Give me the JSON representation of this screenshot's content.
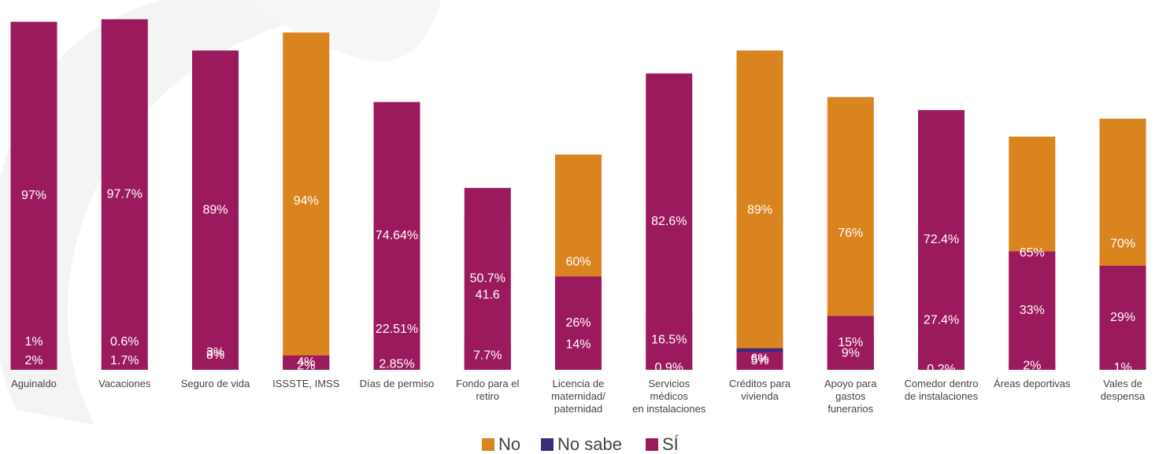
{
  "chart_data": {
    "type": "bar",
    "stacked": true,
    "normalized": true,
    "categories": [
      [
        "Aguinaldo"
      ],
      [
        "Vacaciones"
      ],
      [
        "Seguro de vida"
      ],
      [
        "ISSSTE, IMSS"
      ],
      [
        "Días de permiso"
      ],
      [
        "Fondo para el",
        "retiro"
      ],
      [
        "Licencia de",
        "maternidad/",
        "paternidad"
      ],
      [
        "Servicios",
        "médicos",
        "en instalaciones"
      ],
      [
        "Créditos para",
        "vivienda"
      ],
      [
        "Apoyo para",
        "gastos",
        "funerarios"
      ],
      [
        "Comedor dentro",
        "de instalaciones"
      ],
      [
        "Áreas deportivas"
      ],
      [
        "Vales de",
        "despensa"
      ]
    ],
    "series": [
      {
        "name": "No",
        "color": "#D9841F",
        "values": [
          2,
          1.7,
          8,
          94,
          22.51,
          41.6,
          60,
          16.5,
          89,
          76,
          27.4,
          65,
          70
        ],
        "labels": [
          "2%",
          "1.7%",
          "8%",
          "94%",
          "22.51%",
          "41.6",
          "60%",
          "16.5%",
          "89%",
          "76%",
          "27.4%",
          "65%",
          "70%"
        ]
      },
      {
        "name": "No sabe",
        "color": "#3D2A7D",
        "values": [
          1,
          0.6,
          3,
          2,
          2.85,
          7.7,
          14,
          0.9,
          6,
          9,
          0.2,
          2,
          1
        ],
        "labels": [
          "1%",
          "0.6%",
          "3%",
          "2%",
          "2.85%",
          "7.7%",
          "14%",
          "0.9%",
          "6%",
          "9%",
          "0.2%",
          "2%",
          "1%"
        ]
      },
      {
        "name": "SÍ",
        "color": "#9B1A5E",
        "values": [
          97,
          97.7,
          89,
          4,
          74.64,
          50.7,
          26,
          82.6,
          5,
          15,
          72.4,
          33,
          29
        ],
        "labels": [
          "97%",
          "97.7%",
          "89%",
          "4%",
          "74.64%",
          "50.7%",
          "26%",
          "82.6%",
          "5%",
          "15%",
          "72.4%",
          "33%",
          "29%"
        ]
      }
    ],
    "legend_position": "bottom-center",
    "grid": false,
    "ylim": [
      0,
      100
    ]
  }
}
